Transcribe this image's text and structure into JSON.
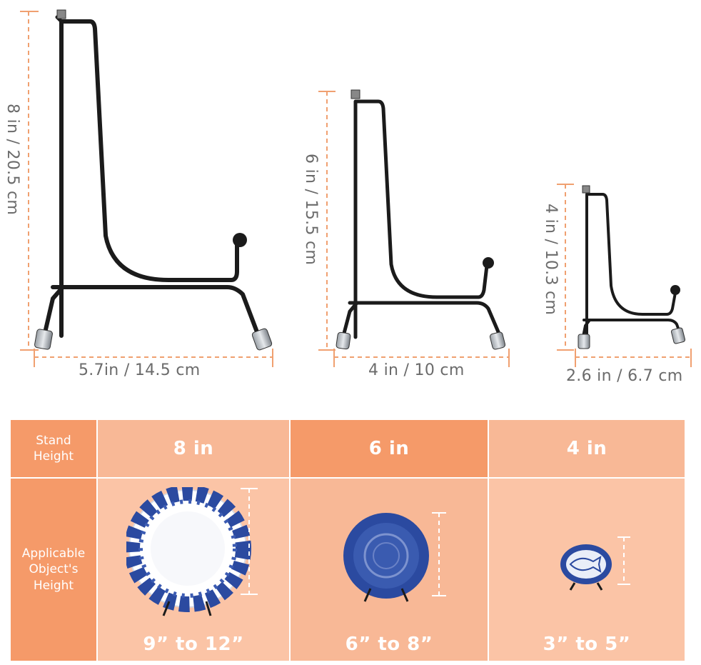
{
  "stands": [
    {
      "height_label": "8 in / 20.5 cm",
      "width_label": "5.7in / 14.5 cm"
    },
    {
      "height_label": "6 in / 15.5 cm",
      "width_label": "4 in / 10 cm"
    },
    {
      "height_label": "4 in / 10.3 cm",
      "width_label": "2.6 in / 6.7 cm"
    }
  ],
  "table": {
    "row_labels": {
      "stand_height": "Stand\nHeight",
      "object_height": "Applicable\nObject's\nHeight"
    },
    "columns": [
      {
        "stand_height": "8 in",
        "object_range": "9” to 12”",
        "object": "round-blue-floral-plate"
      },
      {
        "stand_height": "6 in",
        "object_range": "6” to 8”",
        "object": "blue-bowl-plate"
      },
      {
        "stand_height": "4 in",
        "object_range": "3” to 5”",
        "object": "oval-fish-dish"
      }
    ]
  },
  "colors": {
    "dim_line": "#f0a070",
    "dim_text": "#6b6b6b",
    "header_dark": "#f59a69",
    "cell_light": "#f8b896",
    "cell_mid": "#fbc4a6",
    "stand_metal": "#1b1b1b",
    "plate_blue": "#2b4aa0"
  }
}
